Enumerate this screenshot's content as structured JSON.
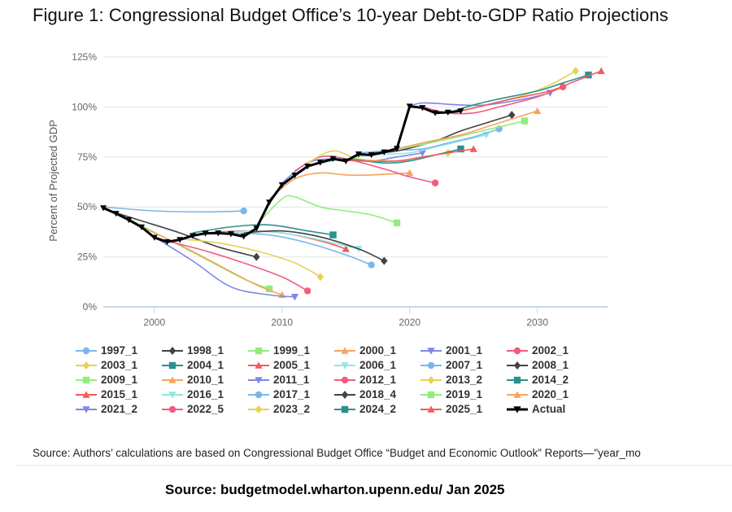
{
  "title": "Figure 1: Congressional Budget Office’s 10-year Debt-to-GDP Ratio Projections",
  "source_line": "Source: Authors’ calculations are based on Congressional Budget Office “Budget and Economic Outlook” Reports—\"year_mo",
  "source_footer": "Source: budgetmodel.wharton.upenn.edu/ Jan 2025",
  "chart_data": {
    "type": "line",
    "xlabel": "",
    "ylabel": "Percent of Projected GDP",
    "xlim": [
      1996,
      2035.5
    ],
    "ylim": [
      0,
      125
    ],
    "x_ticks": [
      2000,
      2010,
      2020,
      2030
    ],
    "y_ticks": [
      0,
      25,
      50,
      75,
      100,
      125
    ],
    "y_tick_labels": [
      "0%",
      "25%",
      "50%",
      "75%",
      "100%",
      "125%"
    ],
    "grid": "horizontal",
    "legend_position": "bottom",
    "series": [
      {
        "name": "1997_1",
        "color": "#7cb5ec",
        "marker": "circle",
        "points": [
          [
            1996,
            50
          ],
          [
            2000,
            48
          ],
          [
            2004,
            47.5
          ],
          [
            2007,
            48
          ]
        ]
      },
      {
        "name": "1998_1",
        "color": "#434348",
        "marker": "diamond",
        "points": [
          [
            1997,
            47
          ],
          [
            1999,
            43
          ],
          [
            2002,
            37
          ],
          [
            2005,
            30
          ],
          [
            2008,
            25
          ]
        ]
      },
      {
        "name": "1999_1",
        "color": "#90ed7d",
        "marker": "square",
        "points": [
          [
            1998,
            44
          ],
          [
            2001,
            34
          ],
          [
            2004,
            24
          ],
          [
            2007,
            14
          ],
          [
            2009,
            9
          ]
        ]
      },
      {
        "name": "2000_1",
        "color": "#f7a35c",
        "marker": "triangle",
        "points": [
          [
            1999,
            40
          ],
          [
            2002,
            31
          ],
          [
            2005,
            21
          ],
          [
            2008,
            11
          ],
          [
            2010,
            6
          ]
        ]
      },
      {
        "name": "2001_1",
        "color": "#8085e9",
        "marker": "triangle-down",
        "points": [
          [
            2000,
            35
          ],
          [
            2003,
            23
          ],
          [
            2006,
            10
          ],
          [
            2009,
            6
          ],
          [
            2011,
            5
          ]
        ]
      },
      {
        "name": "2002_1",
        "color": "#f15c80",
        "marker": "circle",
        "points": [
          [
            2001,
            33
          ],
          [
            2004,
            28
          ],
          [
            2007,
            22
          ],
          [
            2010,
            15
          ],
          [
            2012,
            8
          ]
        ]
      },
      {
        "name": "2003_1",
        "color": "#e4d354",
        "marker": "diamond",
        "points": [
          [
            2002,
            34
          ],
          [
            2005,
            32
          ],
          [
            2008,
            28
          ],
          [
            2011,
            22
          ],
          [
            2013,
            15
          ]
        ]
      },
      {
        "name": "2004_1",
        "color": "#2b908f",
        "marker": "square",
        "points": [
          [
            2003,
            37
          ],
          [
            2006,
            40
          ],
          [
            2009,
            41
          ],
          [
            2012,
            38
          ],
          [
            2014,
            36
          ]
        ]
      },
      {
        "name": "2005_1",
        "color": "#f45b5b",
        "marker": "triangle",
        "points": [
          [
            2004,
            37
          ],
          [
            2007,
            38
          ],
          [
            2010,
            37
          ],
          [
            2013,
            33
          ],
          [
            2015,
            29
          ]
        ]
      },
      {
        "name": "2006_1",
        "color": "#91e8e1",
        "marker": "triangle-down",
        "points": [
          [
            2005,
            37
          ],
          [
            2008,
            38
          ],
          [
            2011,
            36
          ],
          [
            2014,
            32
          ],
          [
            2016,
            29
          ]
        ]
      },
      {
        "name": "2007_1",
        "color": "#7cb5ec",
        "marker": "circle",
        "points": [
          [
            2006,
            37
          ],
          [
            2009,
            36
          ],
          [
            2012,
            32
          ],
          [
            2015,
            26
          ],
          [
            2017,
            21
          ]
        ]
      },
      {
        "name": "2008_1",
        "color": "#434348",
        "marker": "diamond",
        "points": [
          [
            2007,
            37
          ],
          [
            2010,
            38
          ],
          [
            2013,
            35
          ],
          [
            2016,
            29
          ],
          [
            2018,
            23
          ]
        ]
      },
      {
        "name": "2009_1",
        "color": "#90ed7d",
        "marker": "square",
        "points": [
          [
            2008,
            41
          ],
          [
            2010,
            54
          ],
          [
            2011,
            55
          ],
          [
            2013,
            50
          ],
          [
            2015,
            48
          ],
          [
            2017,
            46
          ],
          [
            2019,
            42
          ]
        ]
      },
      {
        "name": "2010_1",
        "color": "#f7a35c",
        "marker": "triangle",
        "points": [
          [
            2009,
            54
          ],
          [
            2011,
            64
          ],
          [
            2013,
            67
          ],
          [
            2015,
            66
          ],
          [
            2017,
            66
          ],
          [
            2020,
            67
          ]
        ]
      },
      {
        "name": "2011_1",
        "color": "#8085e9",
        "marker": "triangle-down",
        "points": [
          [
            2010,
            62
          ],
          [
            2012,
            72
          ],
          [
            2014,
            74
          ],
          [
            2017,
            73
          ],
          [
            2019,
            75
          ],
          [
            2021,
            77
          ]
        ]
      },
      {
        "name": "2012_1",
        "color": "#f15c80",
        "marker": "circle",
        "points": [
          [
            2011,
            68
          ],
          [
            2013,
            75
          ],
          [
            2015,
            74
          ],
          [
            2018,
            69
          ],
          [
            2020,
            65
          ],
          [
            2022,
            62
          ]
        ]
      },
      {
        "name": "2013_2",
        "color": "#e4d354",
        "marker": "diamond",
        "points": [
          [
            2012,
            72
          ],
          [
            2014,
            78
          ],
          [
            2016,
            74
          ],
          [
            2019,
            73
          ],
          [
            2021,
            75
          ],
          [
            2023,
            77
          ]
        ]
      },
      {
        "name": "2014_2",
        "color": "#2b908f",
        "marker": "square",
        "points": [
          [
            2013,
            72
          ],
          [
            2015,
            74
          ],
          [
            2018,
            72
          ],
          [
            2020,
            73
          ],
          [
            2022,
            76
          ],
          [
            2024,
            79
          ]
        ]
      },
      {
        "name": "2015_1",
        "color": "#f45b5b",
        "marker": "triangle",
        "points": [
          [
            2014,
            74
          ],
          [
            2016,
            73
          ],
          [
            2019,
            73
          ],
          [
            2021,
            75
          ],
          [
            2023,
            77
          ],
          [
            2025,
            79
          ]
        ]
      },
      {
        "name": "2016_1",
        "color": "#91e8e1",
        "marker": "triangle-down",
        "points": [
          [
            2015,
            74
          ],
          [
            2017,
            76
          ],
          [
            2020,
            77
          ],
          [
            2022,
            80
          ],
          [
            2024,
            83
          ],
          [
            2026,
            86
          ]
        ]
      },
      {
        "name": "2017_1",
        "color": "#7cb5ec",
        "marker": "circle",
        "points": [
          [
            2016,
            77
          ],
          [
            2018,
            78
          ],
          [
            2021,
            79
          ],
          [
            2023,
            82
          ],
          [
            2025,
            85
          ],
          [
            2027,
            89
          ]
        ]
      },
      {
        "name": "2018_4",
        "color": "#434348",
        "marker": "diamond",
        "points": [
          [
            2017,
            77
          ],
          [
            2019,
            78
          ],
          [
            2022,
            83
          ],
          [
            2024,
            88
          ],
          [
            2026,
            92
          ],
          [
            2028,
            96
          ]
        ]
      },
      {
        "name": "2019_1",
        "color": "#90ed7d",
        "marker": "square",
        "points": [
          [
            2018,
            78
          ],
          [
            2020,
            80
          ],
          [
            2023,
            84
          ],
          [
            2025,
            87
          ],
          [
            2027,
            90
          ],
          [
            2029,
            93
          ]
        ]
      },
      {
        "name": "2020_1",
        "color": "#f7a35c",
        "marker": "triangle",
        "points": [
          [
            2019,
            79
          ],
          [
            2021,
            82
          ],
          [
            2024,
            86
          ],
          [
            2026,
            90
          ],
          [
            2028,
            94
          ],
          [
            2030,
            98
          ]
        ]
      },
      {
        "name": "2021_2",
        "color": "#8085e9",
        "marker": "triangle-down",
        "points": [
          [
            2020,
            100
          ],
          [
            2021,
            102
          ],
          [
            2024,
            101
          ],
          [
            2026,
            101
          ],
          [
            2029,
            104
          ],
          [
            2031,
            107
          ]
        ]
      },
      {
        "name": "2022_5",
        "color": "#f15c80",
        "marker": "circle",
        "points": [
          [
            2021,
            100
          ],
          [
            2023,
            97
          ],
          [
            2025,
            97
          ],
          [
            2027,
            100
          ],
          [
            2030,
            105
          ],
          [
            2032,
            110
          ]
        ]
      },
      {
        "name": "2023_2",
        "color": "#e4d354",
        "marker": "diamond",
        "points": [
          [
            2022,
            97
          ],
          [
            2024,
            98
          ],
          [
            2026,
            101
          ],
          [
            2029,
            106
          ],
          [
            2031,
            111
          ],
          [
            2033,
            118
          ]
        ]
      },
      {
        "name": "2024_2",
        "color": "#2b908f",
        "marker": "square",
        "points": [
          [
            2023,
            97
          ],
          [
            2025,
            101
          ],
          [
            2027,
            104
          ],
          [
            2030,
            108
          ],
          [
            2032,
            112
          ],
          [
            2034,
            116
          ]
        ]
      },
      {
        "name": "2025_1",
        "color": "#f45b5b",
        "marker": "triangle",
        "points": [
          [
            2024,
            98
          ],
          [
            2026,
            101
          ],
          [
            2028,
            104
          ],
          [
            2031,
            108
          ],
          [
            2033,
            113
          ],
          [
            2035,
            118
          ]
        ]
      },
      {
        "name": "Actual",
        "color": "#000000",
        "marker": "triangle-down",
        "actual": true,
        "points": [
          [
            1996,
            49.5
          ],
          [
            1997,
            46.7
          ],
          [
            1998,
            43.5
          ],
          [
            1999,
            39.9
          ],
          [
            2000,
            34.7
          ],
          [
            2001,
            32.5
          ],
          [
            2002,
            33.6
          ],
          [
            2003,
            35.6
          ],
          [
            2004,
            36.8
          ],
          [
            2005,
            36.9
          ],
          [
            2006,
            36.5
          ],
          [
            2007,
            35.2
          ],
          [
            2008,
            39.3
          ],
          [
            2009,
            52.3
          ],
          [
            2010,
            61.0
          ],
          [
            2011,
            65.8
          ],
          [
            2012,
            70.3
          ],
          [
            2013,
            72.2
          ],
          [
            2014,
            74.1
          ],
          [
            2015,
            72.9
          ],
          [
            2016,
            76.4
          ],
          [
            2017,
            76.0
          ],
          [
            2018,
            77.4
          ],
          [
            2019,
            79.2
          ],
          [
            2020,
            100.3
          ],
          [
            2021,
            99.6
          ],
          [
            2022,
            97.0
          ],
          [
            2023,
            97.3
          ],
          [
            2024,
            98.0
          ]
        ]
      }
    ]
  }
}
